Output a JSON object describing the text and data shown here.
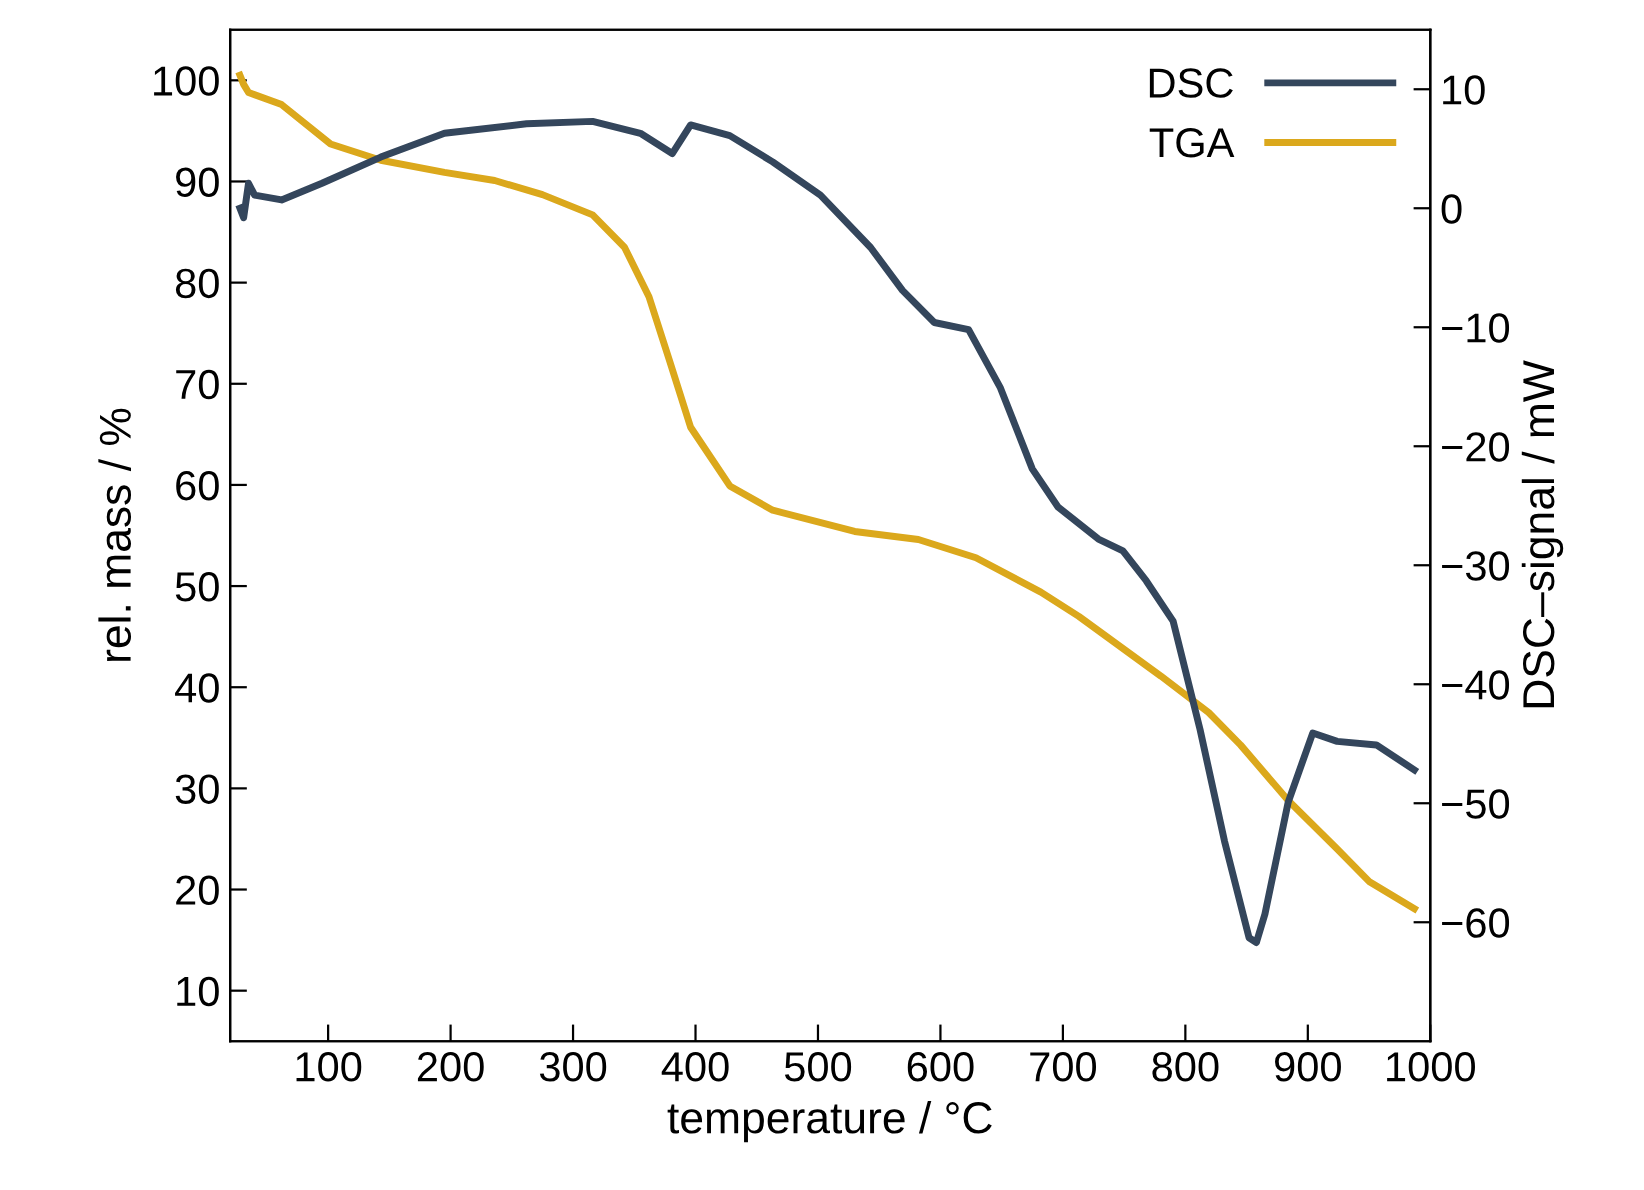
{
  "chart_data": {
    "type": "line",
    "xlabel": "temperature / °C",
    "ylabel": "rel. mass / %",
    "y2label": "DSC–signal / mW",
    "xlim": [
      20,
      1000
    ],
    "xticks": [
      100,
      200,
      300,
      400,
      500,
      600,
      700,
      800,
      900,
      1000
    ],
    "ylim": [
      5,
      105
    ],
    "yticks": [
      10,
      20,
      30,
      40,
      50,
      60,
      70,
      80,
      90,
      100
    ],
    "y2lim": [
      -70,
      15
    ],
    "y2ticks": [
      {
        "value": -60,
        "label": "−60"
      },
      {
        "value": -50,
        "label": "−50"
      },
      {
        "value": -40,
        "label": "−40"
      },
      {
        "value": -30,
        "label": "−30"
      },
      {
        "value": -20,
        "label": "−20"
      },
      {
        "value": -10,
        "label": "−10"
      },
      0,
      10
    ],
    "grid": false,
    "legend": "top right",
    "marker": "none",
    "line_style": "solid",
    "series": [
      {
        "name": "DSC",
        "color": "#34465c",
        "axis": "y2",
        "x": [
          28,
          31,
          35,
          40,
          62,
          95,
          143,
          195,
          262,
          316,
          355,
          381,
          396,
          428,
          463,
          502,
          543,
          569,
          595,
          623,
          649,
          675,
          696,
          729,
          749,
          768,
          790,
          812,
          832,
          852,
          858,
          865,
          884,
          904,
          924,
          956,
          987
        ],
        "values": [
          0,
          -0.8,
          2.1,
          1.1,
          0.7,
          2.1,
          4.3,
          6.3,
          7.1,
          7.3,
          6.3,
          4.6,
          7.0,
          6.1,
          3.9,
          1.1,
          -3.3,
          -6.9,
          -9.6,
          -10.2,
          -15.1,
          -21.9,
          -25.1,
          -27.8,
          -28.8,
          -31.3,
          -34.7,
          -43.8,
          -53.2,
          -61.3,
          -61.7,
          -59.3,
          -49.9,
          -44.1,
          -44.8,
          -45.1,
          -47.2
        ]
      },
      {
        "name": "TGA",
        "color": "#dba81c",
        "x": [
          28,
          31,
          35,
          62,
          102,
          143,
          195,
          236,
          275,
          316,
          342,
          362,
          379,
          396,
          428,
          463,
          530,
          582,
          629,
          682,
          713,
          780,
          819,
          845,
          884,
          924,
          950,
          987
        ],
        "values": [
          100.5,
          99.6,
          98.8,
          97.6,
          93.7,
          92.1,
          90.9,
          90.1,
          88.7,
          86.7,
          83.5,
          78.6,
          72.2,
          65.7,
          59.9,
          57.5,
          55.4,
          54.6,
          52.8,
          49.4,
          47.0,
          41.1,
          37.5,
          34.3,
          28.8,
          24.0,
          20.8,
          18.1
        ]
      }
    ]
  }
}
